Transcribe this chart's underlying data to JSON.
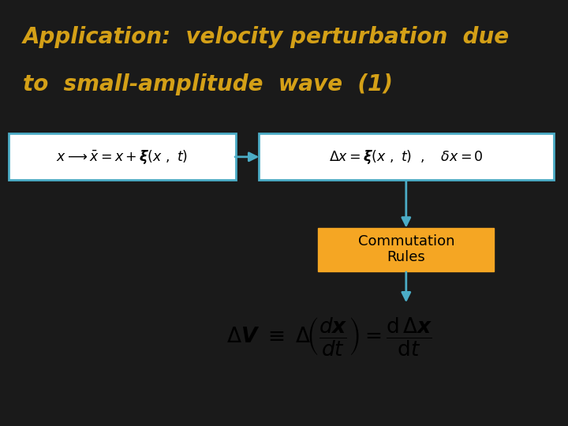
{
  "title_line1": "Application:  velocity perturbation  due",
  "title_line2": "to  small-amplitude  wave  (1)",
  "title_color": "#D4A017",
  "background_color": "#1a1a1a",
  "content_bg": "#ffffff",
  "box_border_color": "#4bacc6",
  "arrow_color": "#4bacc6",
  "commutation_bg": "#F5A623",
  "commutation_text_color": "#000000"
}
